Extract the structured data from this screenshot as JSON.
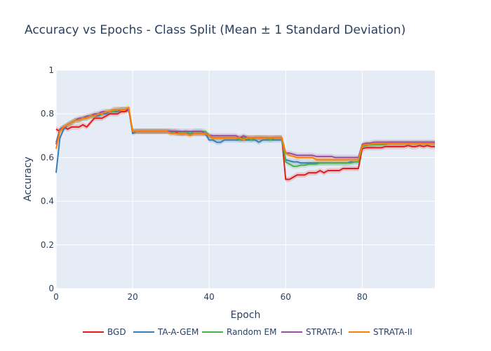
{
  "chart_data": {
    "type": "line",
    "title": "Accuracy vs Epochs - Class Split (Mean ± 1 Standard Deviation)",
    "xlabel": "Epoch",
    "ylabel": "Accuracy",
    "xlim": [
      0,
      99
    ],
    "ylim": [
      0,
      1
    ],
    "x_ticks": [
      "0",
      "20",
      "40",
      "60",
      "80"
    ],
    "y_ticks": [
      "0",
      "0.2",
      "0.4",
      "0.6",
      "0.8",
      "1"
    ],
    "legend_position": "bottom-center",
    "grid": true,
    "series": [
      {
        "name": "BGD",
        "color": "#e41a1c",
        "std": 0.012,
        "values": [
          0.73,
          0.72,
          0.74,
          0.73,
          0.74,
          0.74,
          0.74,
          0.75,
          0.74,
          0.76,
          0.78,
          0.78,
          0.78,
          0.79,
          0.8,
          0.8,
          0.8,
          0.81,
          0.81,
          0.82,
          0.72,
          0.72,
          0.72,
          0.72,
          0.72,
          0.72,
          0.72,
          0.72,
          0.72,
          0.72,
          0.72,
          0.72,
          0.71,
          0.71,
          0.71,
          0.71,
          0.71,
          0.71,
          0.71,
          0.71,
          0.7,
          0.69,
          0.69,
          0.69,
          0.69,
          0.69,
          0.69,
          0.69,
          0.69,
          0.69,
          0.69,
          0.69,
          0.69,
          0.69,
          0.69,
          0.69,
          0.69,
          0.69,
          0.69,
          0.69,
          0.5,
          0.5,
          0.51,
          0.52,
          0.52,
          0.52,
          0.53,
          0.53,
          0.53,
          0.54,
          0.53,
          0.54,
          0.54,
          0.54,
          0.54,
          0.55,
          0.55,
          0.55,
          0.55,
          0.55,
          0.64,
          0.645,
          0.645,
          0.645,
          0.645,
          0.645,
          0.65,
          0.65,
          0.65,
          0.65,
          0.65,
          0.65,
          0.655,
          0.65,
          0.65,
          0.655,
          0.65,
          0.655,
          0.65,
          0.65
        ]
      },
      {
        "name": "TA-A-GEM",
        "color": "#377eb8",
        "std": 0.012,
        "values": [
          0.53,
          0.69,
          0.73,
          0.75,
          0.76,
          0.77,
          0.77,
          0.78,
          0.78,
          0.79,
          0.79,
          0.79,
          0.8,
          0.8,
          0.81,
          0.81,
          0.81,
          0.82,
          0.82,
          0.82,
          0.71,
          0.72,
          0.72,
          0.72,
          0.72,
          0.72,
          0.72,
          0.72,
          0.72,
          0.72,
          0.72,
          0.71,
          0.71,
          0.71,
          0.71,
          0.71,
          0.71,
          0.71,
          0.71,
          0.71,
          0.68,
          0.68,
          0.67,
          0.67,
          0.68,
          0.68,
          0.68,
          0.68,
          0.68,
          0.68,
          0.68,
          0.68,
          0.68,
          0.67,
          0.68,
          0.68,
          0.68,
          0.68,
          0.68,
          0.68,
          0.59,
          0.585,
          0.58,
          0.58,
          0.575,
          0.575,
          0.575,
          0.575,
          0.575,
          0.575,
          0.575,
          0.575,
          0.575,
          0.575,
          0.575,
          0.575,
          0.575,
          0.58,
          0.58,
          0.58,
          0.655,
          0.66,
          0.66,
          0.66,
          0.665,
          0.665,
          0.665,
          0.665,
          0.665,
          0.665,
          0.665,
          0.665,
          0.665,
          0.665,
          0.665,
          0.665,
          0.665,
          0.665,
          0.665,
          0.665
        ]
      },
      {
        "name": "Random EM",
        "color": "#4daf4a",
        "std": 0.012,
        "values": [
          0.67,
          0.73,
          0.74,
          0.75,
          0.76,
          0.77,
          0.77,
          0.78,
          0.78,
          0.79,
          0.79,
          0.8,
          0.8,
          0.81,
          0.81,
          0.81,
          0.82,
          0.82,
          0.82,
          0.82,
          0.72,
          0.72,
          0.72,
          0.72,
          0.72,
          0.72,
          0.72,
          0.72,
          0.72,
          0.72,
          0.71,
          0.72,
          0.72,
          0.71,
          0.72,
          0.71,
          0.72,
          0.72,
          0.72,
          0.72,
          0.7,
          0.69,
          0.69,
          0.69,
          0.69,
          0.69,
          0.69,
          0.69,
          0.68,
          0.69,
          0.69,
          0.68,
          0.69,
          0.69,
          0.69,
          0.69,
          0.68,
          0.69,
          0.69,
          0.69,
          0.58,
          0.57,
          0.56,
          0.56,
          0.565,
          0.565,
          0.57,
          0.57,
          0.57,
          0.575,
          0.575,
          0.575,
          0.575,
          0.575,
          0.575,
          0.575,
          0.575,
          0.575,
          0.58,
          0.58,
          0.65,
          0.655,
          0.66,
          0.66,
          0.66,
          0.66,
          0.66,
          0.665,
          0.665,
          0.665,
          0.665,
          0.665,
          0.665,
          0.665,
          0.665,
          0.665,
          0.665,
          0.665,
          0.665,
          0.665
        ]
      },
      {
        "name": "STRATA-I",
        "color": "#984ea3",
        "std": 0.012,
        "values": [
          0.66,
          0.73,
          0.74,
          0.75,
          0.76,
          0.77,
          0.78,
          0.78,
          0.79,
          0.79,
          0.8,
          0.8,
          0.81,
          0.81,
          0.81,
          0.82,
          0.82,
          0.82,
          0.82,
          0.82,
          0.72,
          0.72,
          0.72,
          0.72,
          0.72,
          0.72,
          0.72,
          0.72,
          0.72,
          0.72,
          0.72,
          0.72,
          0.72,
          0.72,
          0.72,
          0.72,
          0.72,
          0.72,
          0.72,
          0.71,
          0.7,
          0.7,
          0.7,
          0.7,
          0.7,
          0.7,
          0.7,
          0.7,
          0.69,
          0.7,
          0.69,
          0.69,
          0.69,
          0.69,
          0.69,
          0.69,
          0.69,
          0.69,
          0.69,
          0.69,
          0.62,
          0.62,
          0.615,
          0.61,
          0.61,
          0.61,
          0.61,
          0.61,
          0.605,
          0.605,
          0.605,
          0.605,
          0.605,
          0.6,
          0.6,
          0.6,
          0.6,
          0.6,
          0.6,
          0.6,
          0.66,
          0.665,
          0.665,
          0.67,
          0.67,
          0.67,
          0.67,
          0.67,
          0.67,
          0.67,
          0.67,
          0.67,
          0.67,
          0.67,
          0.67,
          0.67,
          0.67,
          0.67,
          0.67,
          0.67
        ]
      },
      {
        "name": "STRATA-II",
        "color": "#ff7f00",
        "std": 0.012,
        "values": [
          0.64,
          0.72,
          0.74,
          0.75,
          0.76,
          0.77,
          0.77,
          0.78,
          0.78,
          0.79,
          0.79,
          0.8,
          0.8,
          0.81,
          0.81,
          0.82,
          0.82,
          0.82,
          0.82,
          0.83,
          0.72,
          0.72,
          0.72,
          0.72,
          0.72,
          0.72,
          0.72,
          0.72,
          0.72,
          0.72,
          0.71,
          0.71,
          0.71,
          0.71,
          0.71,
          0.7,
          0.71,
          0.71,
          0.71,
          0.71,
          0.7,
          0.69,
          0.69,
          0.69,
          0.69,
          0.69,
          0.69,
          0.69,
          0.69,
          0.68,
          0.69,
          0.69,
          0.69,
          0.69,
          0.69,
          0.69,
          0.69,
          0.69,
          0.69,
          0.69,
          0.62,
          0.61,
          0.605,
          0.6,
          0.6,
          0.6,
          0.6,
          0.6,
          0.59,
          0.59,
          0.59,
          0.59,
          0.59,
          0.59,
          0.59,
          0.59,
          0.59,
          0.59,
          0.59,
          0.59,
          0.655,
          0.66,
          0.66,
          0.665,
          0.665,
          0.665,
          0.665,
          0.665,
          0.665,
          0.665,
          0.665,
          0.665,
          0.665,
          0.665,
          0.665,
          0.665,
          0.665,
          0.665,
          0.665,
          0.665
        ]
      }
    ]
  }
}
